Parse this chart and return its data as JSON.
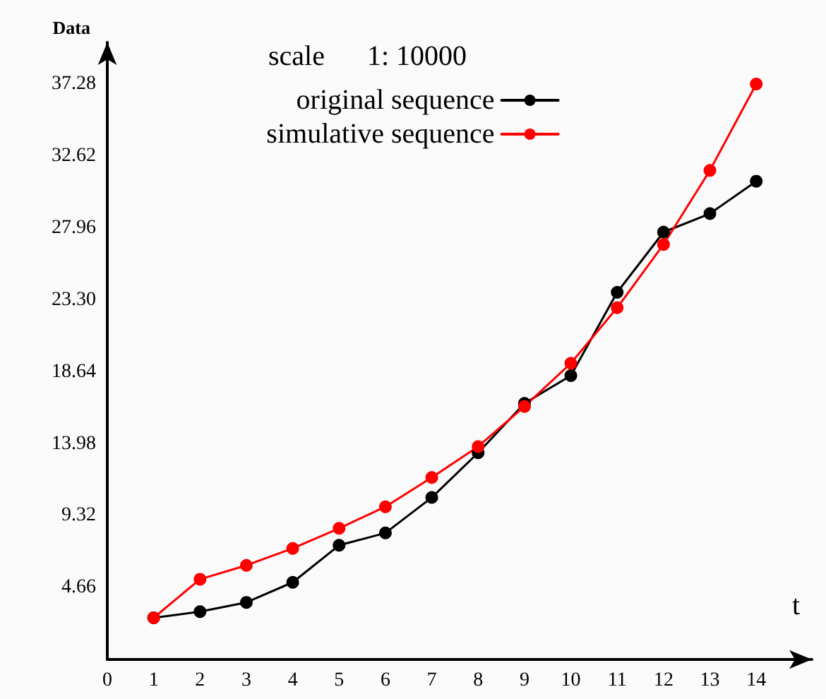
{
  "chart_data": {
    "type": "line",
    "xlabel": "t",
    "ylabel": "Data",
    "annotations": [
      "scale      1: 10000"
    ],
    "x": [
      1,
      2,
      3,
      4,
      5,
      6,
      7,
      8,
      9,
      10,
      11,
      12,
      13,
      14
    ],
    "series": [
      {
        "name": "original sequence",
        "color": "#000000",
        "values": [
          2.7,
          3.1,
          3.7,
          5.0,
          7.4,
          8.2,
          10.5,
          13.4,
          16.6,
          18.4,
          23.8,
          27.7,
          28.9,
          31.0
        ]
      },
      {
        "name": "simulative sequence",
        "color": "#ff0000",
        "values": [
          2.7,
          5.2,
          6.1,
          7.2,
          8.5,
          9.9,
          11.8,
          13.8,
          16.4,
          19.2,
          22.8,
          26.9,
          31.7,
          37.3
        ]
      }
    ],
    "xlim": [
      0,
      15.2
    ],
    "xticks": [
      0,
      1,
      2,
      3,
      4,
      5,
      6,
      7,
      8,
      9,
      10,
      11,
      12,
      13,
      14
    ],
    "ylim": [
      0,
      40
    ],
    "yticks": [
      4.66,
      9.32,
      13.98,
      18.64,
      {
        "value": 23.3,
        "label": "23.30"
      },
      27.96,
      32.62,
      37.28
    ],
    "grid": false,
    "legend": "top",
    "marker": "circle",
    "line_style": "solid"
  }
}
